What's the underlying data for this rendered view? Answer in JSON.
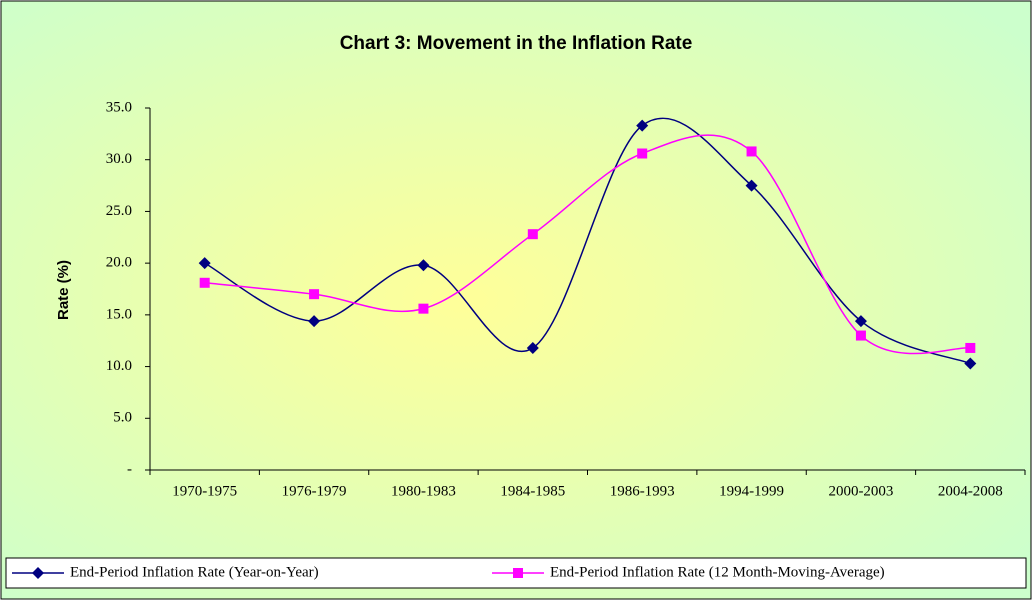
{
  "chart_data": {
    "type": "line",
    "title": "Chart 3: Movement in the Inflation Rate",
    "y_label": "Rate (%)",
    "categories": [
      "1970-1975",
      "1976-1979",
      "1980-1983",
      "1984-1985",
      "1986-1993",
      "1994-1999",
      "2000-2003",
      "2004-2008"
    ],
    "series": [
      {
        "name": "End-Period Inflation Rate (Year-on-Year)",
        "color": "#000080",
        "marker": "diamond",
        "values": [
          20.0,
          14.4,
          19.8,
          11.8,
          33.3,
          27.5,
          14.4,
          10.3
        ]
      },
      {
        "name": "End-Period Inflation Rate (12 Month-Moving-Average)",
        "color": "#ff00ff",
        "marker": "square",
        "values": [
          18.1,
          17.0,
          15.6,
          22.8,
          30.6,
          30.8,
          13.0,
          11.8
        ]
      }
    ],
    "ylim": [
      0,
      35
    ],
    "yticks": [
      {
        "value": 0,
        "label": "-"
      },
      {
        "value": 5,
        "label": "5.0"
      },
      {
        "value": 10,
        "label": "10.0"
      },
      {
        "value": 15,
        "label": "15.0"
      },
      {
        "value": 20,
        "label": "20.0"
      },
      {
        "value": 25,
        "label": "25.0"
      },
      {
        "value": 30,
        "label": "30.0"
      },
      {
        "value": 35,
        "label": "35.0"
      }
    ],
    "smooth": true,
    "legend": "bottom"
  }
}
